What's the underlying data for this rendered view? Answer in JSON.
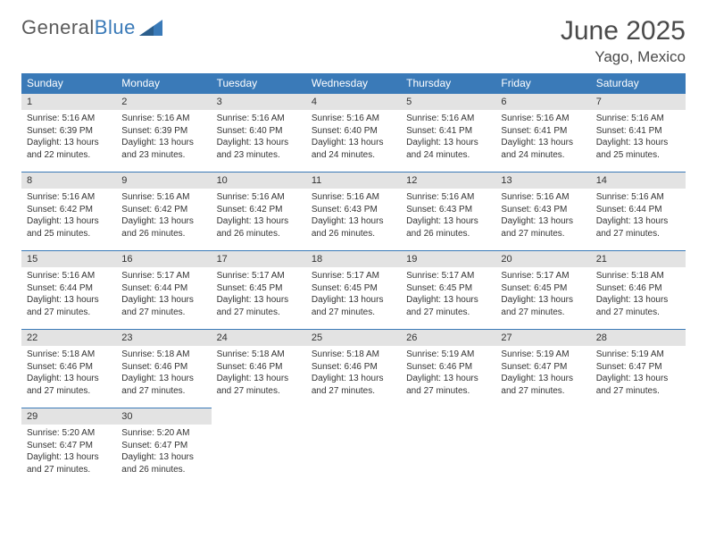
{
  "brand": {
    "part1": "General",
    "part2": "Blue"
  },
  "title": "June 2025",
  "location": "Yago, Mexico",
  "colors": {
    "header_bg": "#3a7ab8",
    "header_text": "#ffffff",
    "daynum_bg": "#e3e3e3",
    "border": "#3a7ab8",
    "body_text": "#333333",
    "logo_gray": "#5b5b5b",
    "logo_blue": "#3a7ab8"
  },
  "weekdays": [
    "Sunday",
    "Monday",
    "Tuesday",
    "Wednesday",
    "Thursday",
    "Friday",
    "Saturday"
  ],
  "days": [
    {
      "n": "1",
      "sr": "Sunrise: 5:16 AM",
      "ss": "Sunset: 6:39 PM",
      "d1": "Daylight: 13 hours",
      "d2": "and 22 minutes."
    },
    {
      "n": "2",
      "sr": "Sunrise: 5:16 AM",
      "ss": "Sunset: 6:39 PM",
      "d1": "Daylight: 13 hours",
      "d2": "and 23 minutes."
    },
    {
      "n": "3",
      "sr": "Sunrise: 5:16 AM",
      "ss": "Sunset: 6:40 PM",
      "d1": "Daylight: 13 hours",
      "d2": "and 23 minutes."
    },
    {
      "n": "4",
      "sr": "Sunrise: 5:16 AM",
      "ss": "Sunset: 6:40 PM",
      "d1": "Daylight: 13 hours",
      "d2": "and 24 minutes."
    },
    {
      "n": "5",
      "sr": "Sunrise: 5:16 AM",
      "ss": "Sunset: 6:41 PM",
      "d1": "Daylight: 13 hours",
      "d2": "and 24 minutes."
    },
    {
      "n": "6",
      "sr": "Sunrise: 5:16 AM",
      "ss": "Sunset: 6:41 PM",
      "d1": "Daylight: 13 hours",
      "d2": "and 24 minutes."
    },
    {
      "n": "7",
      "sr": "Sunrise: 5:16 AM",
      "ss": "Sunset: 6:41 PM",
      "d1": "Daylight: 13 hours",
      "d2": "and 25 minutes."
    },
    {
      "n": "8",
      "sr": "Sunrise: 5:16 AM",
      "ss": "Sunset: 6:42 PM",
      "d1": "Daylight: 13 hours",
      "d2": "and 25 minutes."
    },
    {
      "n": "9",
      "sr": "Sunrise: 5:16 AM",
      "ss": "Sunset: 6:42 PM",
      "d1": "Daylight: 13 hours",
      "d2": "and 26 minutes."
    },
    {
      "n": "10",
      "sr": "Sunrise: 5:16 AM",
      "ss": "Sunset: 6:42 PM",
      "d1": "Daylight: 13 hours",
      "d2": "and 26 minutes."
    },
    {
      "n": "11",
      "sr": "Sunrise: 5:16 AM",
      "ss": "Sunset: 6:43 PM",
      "d1": "Daylight: 13 hours",
      "d2": "and 26 minutes."
    },
    {
      "n": "12",
      "sr": "Sunrise: 5:16 AM",
      "ss": "Sunset: 6:43 PM",
      "d1": "Daylight: 13 hours",
      "d2": "and 26 minutes."
    },
    {
      "n": "13",
      "sr": "Sunrise: 5:16 AM",
      "ss": "Sunset: 6:43 PM",
      "d1": "Daylight: 13 hours",
      "d2": "and 27 minutes."
    },
    {
      "n": "14",
      "sr": "Sunrise: 5:16 AM",
      "ss": "Sunset: 6:44 PM",
      "d1": "Daylight: 13 hours",
      "d2": "and 27 minutes."
    },
    {
      "n": "15",
      "sr": "Sunrise: 5:16 AM",
      "ss": "Sunset: 6:44 PM",
      "d1": "Daylight: 13 hours",
      "d2": "and 27 minutes."
    },
    {
      "n": "16",
      "sr": "Sunrise: 5:17 AM",
      "ss": "Sunset: 6:44 PM",
      "d1": "Daylight: 13 hours",
      "d2": "and 27 minutes."
    },
    {
      "n": "17",
      "sr": "Sunrise: 5:17 AM",
      "ss": "Sunset: 6:45 PM",
      "d1": "Daylight: 13 hours",
      "d2": "and 27 minutes."
    },
    {
      "n": "18",
      "sr": "Sunrise: 5:17 AM",
      "ss": "Sunset: 6:45 PM",
      "d1": "Daylight: 13 hours",
      "d2": "and 27 minutes."
    },
    {
      "n": "19",
      "sr": "Sunrise: 5:17 AM",
      "ss": "Sunset: 6:45 PM",
      "d1": "Daylight: 13 hours",
      "d2": "and 27 minutes."
    },
    {
      "n": "20",
      "sr": "Sunrise: 5:17 AM",
      "ss": "Sunset: 6:45 PM",
      "d1": "Daylight: 13 hours",
      "d2": "and 27 minutes."
    },
    {
      "n": "21",
      "sr": "Sunrise: 5:18 AM",
      "ss": "Sunset: 6:46 PM",
      "d1": "Daylight: 13 hours",
      "d2": "and 27 minutes."
    },
    {
      "n": "22",
      "sr": "Sunrise: 5:18 AM",
      "ss": "Sunset: 6:46 PM",
      "d1": "Daylight: 13 hours",
      "d2": "and 27 minutes."
    },
    {
      "n": "23",
      "sr": "Sunrise: 5:18 AM",
      "ss": "Sunset: 6:46 PM",
      "d1": "Daylight: 13 hours",
      "d2": "and 27 minutes."
    },
    {
      "n": "24",
      "sr": "Sunrise: 5:18 AM",
      "ss": "Sunset: 6:46 PM",
      "d1": "Daylight: 13 hours",
      "d2": "and 27 minutes."
    },
    {
      "n": "25",
      "sr": "Sunrise: 5:18 AM",
      "ss": "Sunset: 6:46 PM",
      "d1": "Daylight: 13 hours",
      "d2": "and 27 minutes."
    },
    {
      "n": "26",
      "sr": "Sunrise: 5:19 AM",
      "ss": "Sunset: 6:46 PM",
      "d1": "Daylight: 13 hours",
      "d2": "and 27 minutes."
    },
    {
      "n": "27",
      "sr": "Sunrise: 5:19 AM",
      "ss": "Sunset: 6:47 PM",
      "d1": "Daylight: 13 hours",
      "d2": "and 27 minutes."
    },
    {
      "n": "28",
      "sr": "Sunrise: 5:19 AM",
      "ss": "Sunset: 6:47 PM",
      "d1": "Daylight: 13 hours",
      "d2": "and 27 minutes."
    },
    {
      "n": "29",
      "sr": "Sunrise: 5:20 AM",
      "ss": "Sunset: 6:47 PM",
      "d1": "Daylight: 13 hours",
      "d2": "and 27 minutes."
    },
    {
      "n": "30",
      "sr": "Sunrise: 5:20 AM",
      "ss": "Sunset: 6:47 PM",
      "d1": "Daylight: 13 hours",
      "d2": "and 26 minutes."
    }
  ]
}
